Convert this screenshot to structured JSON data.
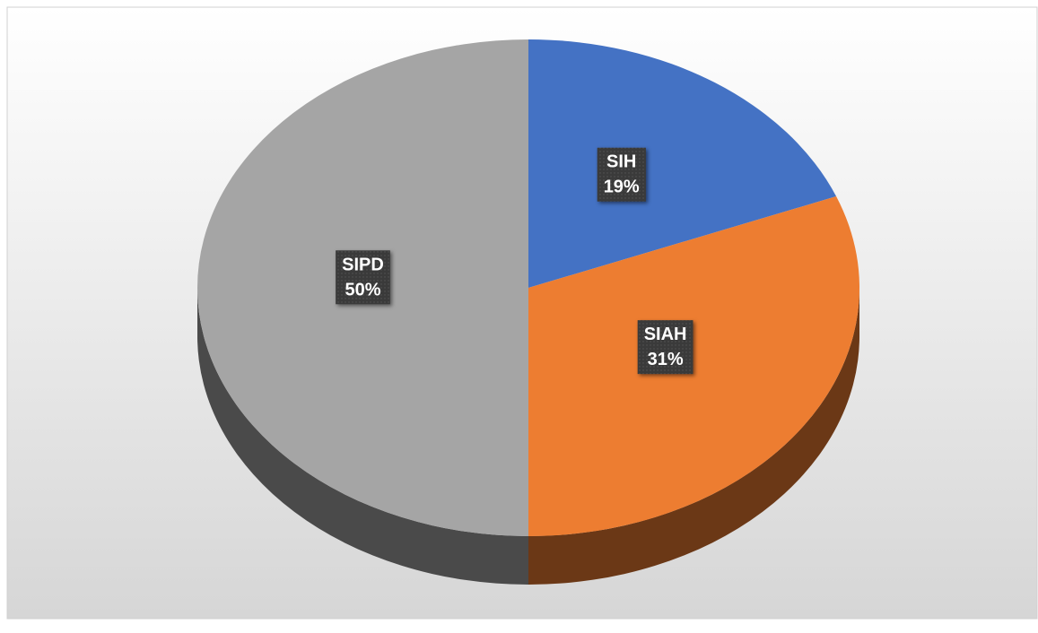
{
  "chart_data": {
    "type": "pie",
    "categories": [
      "SIH",
      "SIAH",
      "SIPD"
    ],
    "values": [
      19,
      31,
      50
    ],
    "value_labels": [
      "19%",
      "31%",
      "50%"
    ],
    "colors": [
      "#4472c4",
      "#ed7d31",
      "#a5a5a5"
    ]
  }
}
